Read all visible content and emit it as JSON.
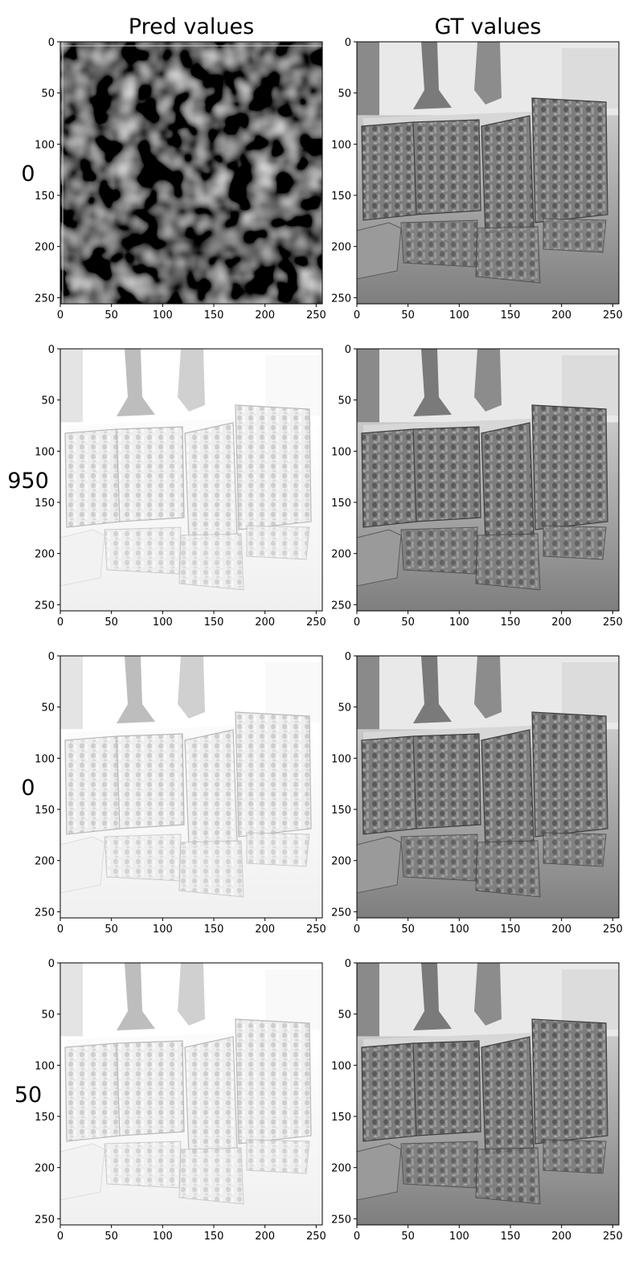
{
  "figure": {
    "column_titles": [
      "Pred values",
      "GT values"
    ],
    "row_labels": [
      "0",
      "950",
      "0",
      "50"
    ]
  },
  "chart_data": {
    "type": "heatmap",
    "layout": "grid of image panels, 4 rows x 2 columns",
    "colormap": "grayscale",
    "columns": [
      "Pred values",
      "GT values"
    ],
    "rows": [
      "0",
      "950",
      "0",
      "50"
    ],
    "image_size": [
      256,
      256
    ],
    "xlim": [
      0,
      256
    ],
    "ylim": [
      256,
      0
    ],
    "x_ticks": [
      0,
      50,
      100,
      150,
      200,
      250
    ],
    "y_ticks": [
      0,
      50,
      100,
      150,
      200,
      250
    ],
    "grid": false,
    "panels": [
      {
        "row": "0",
        "column": "Pred values",
        "content": "dark noisy blotches",
        "tone": "dark"
      },
      {
        "row": "0",
        "column": "GT values",
        "content": "sculpture photo",
        "tone": "mid"
      },
      {
        "row": "950",
        "column": "Pred values",
        "content": "sculpture photo, washed out",
        "tone": "light"
      },
      {
        "row": "950",
        "column": "GT values",
        "content": "sculpture photo",
        "tone": "mid"
      },
      {
        "row": "0",
        "column": "Pred values",
        "content": "sculpture photo, washed out",
        "tone": "light"
      },
      {
        "row": "0",
        "column": "GT values",
        "content": "sculpture photo",
        "tone": "mid"
      },
      {
        "row": "50",
        "column": "Pred values",
        "content": "sculpture photo, washed out",
        "tone": "light"
      },
      {
        "row": "50",
        "column": "GT values",
        "content": "sculpture photo",
        "tone": "mid"
      }
    ]
  }
}
